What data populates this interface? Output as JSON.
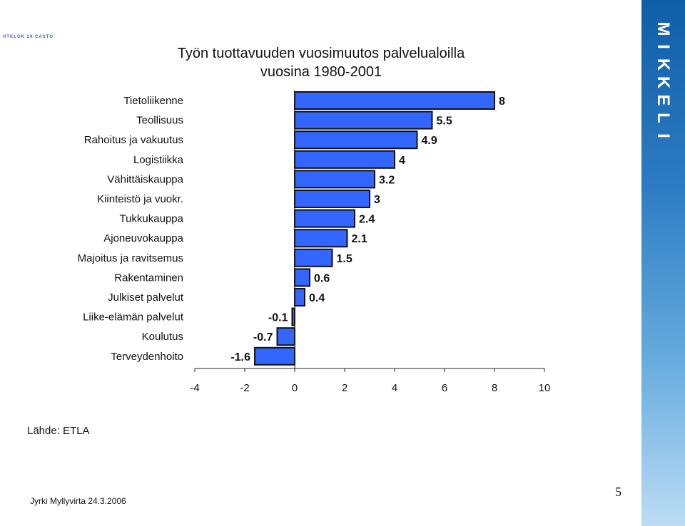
{
  "header_tag": "HTKLOK 20 CASTO",
  "title_lines": [
    "Työn tuottavuuden vuosimuutos palvelualoilla",
    "vuosina 1980-2001"
  ],
  "source": "Lähde: ETLA",
  "footer": {
    "author": "Jyrki Myllyvirta 24.3.2006",
    "page_number": "5"
  },
  "brand": {
    "letters": [
      "M",
      "I",
      "K",
      "K",
      "E",
      "L",
      "I"
    ]
  },
  "colors": {
    "bar_fill": "#3366ff",
    "bar_stroke": "#111111",
    "brand_strip": "#1f6fb8"
  },
  "chart_data": {
    "type": "bar",
    "orientation": "horizontal",
    "title": "Työn tuottavuuden vuosimuutos palvelualoilla vuosina 1980-2001",
    "categories": [
      "Tietoliikenne",
      "Teollisuus",
      "Rahoitus ja vakuutus",
      "Logistiikka",
      "Vähittäiskauppa",
      "Kiinteistö ja vuokr.",
      "Tukkukauppa",
      "Ajoneuvokauppa",
      "Majoitus ja ravitsemus",
      "Rakentaminen",
      "Julkiset palvelut",
      "Liike-elämän palvelut",
      "Koulutus",
      "Terveydenhoito"
    ],
    "values": [
      8,
      5.5,
      4.9,
      4,
      3.2,
      3,
      2.4,
      2.1,
      1.5,
      0.6,
      0.4,
      -0.1,
      -0.7,
      -1.6
    ],
    "value_labels": [
      "8",
      "5.5",
      "4.9",
      "4",
      "3.2",
      "3",
      "2.4",
      "2.1",
      "1.5",
      "0.6",
      "0.4",
      "-0.1",
      "-0.7",
      "-1.6"
    ],
    "xlim": [
      -4,
      10
    ],
    "xticks": [
      -4,
      -2,
      0,
      2,
      4,
      6,
      8,
      10
    ],
    "xtick_labels": [
      "-4",
      "-2",
      "0",
      "2",
      "4",
      "6",
      "8",
      "10"
    ],
    "grid": false,
    "legend": "none"
  }
}
